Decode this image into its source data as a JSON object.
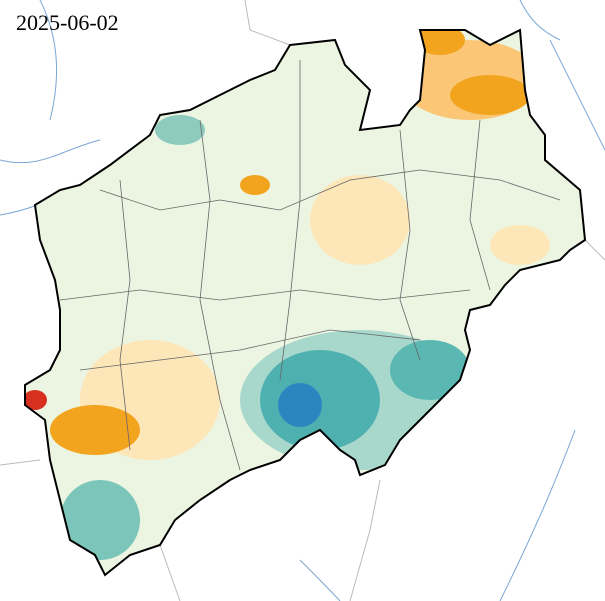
{
  "map": {
    "date": "2025-06-02"
  }
}
